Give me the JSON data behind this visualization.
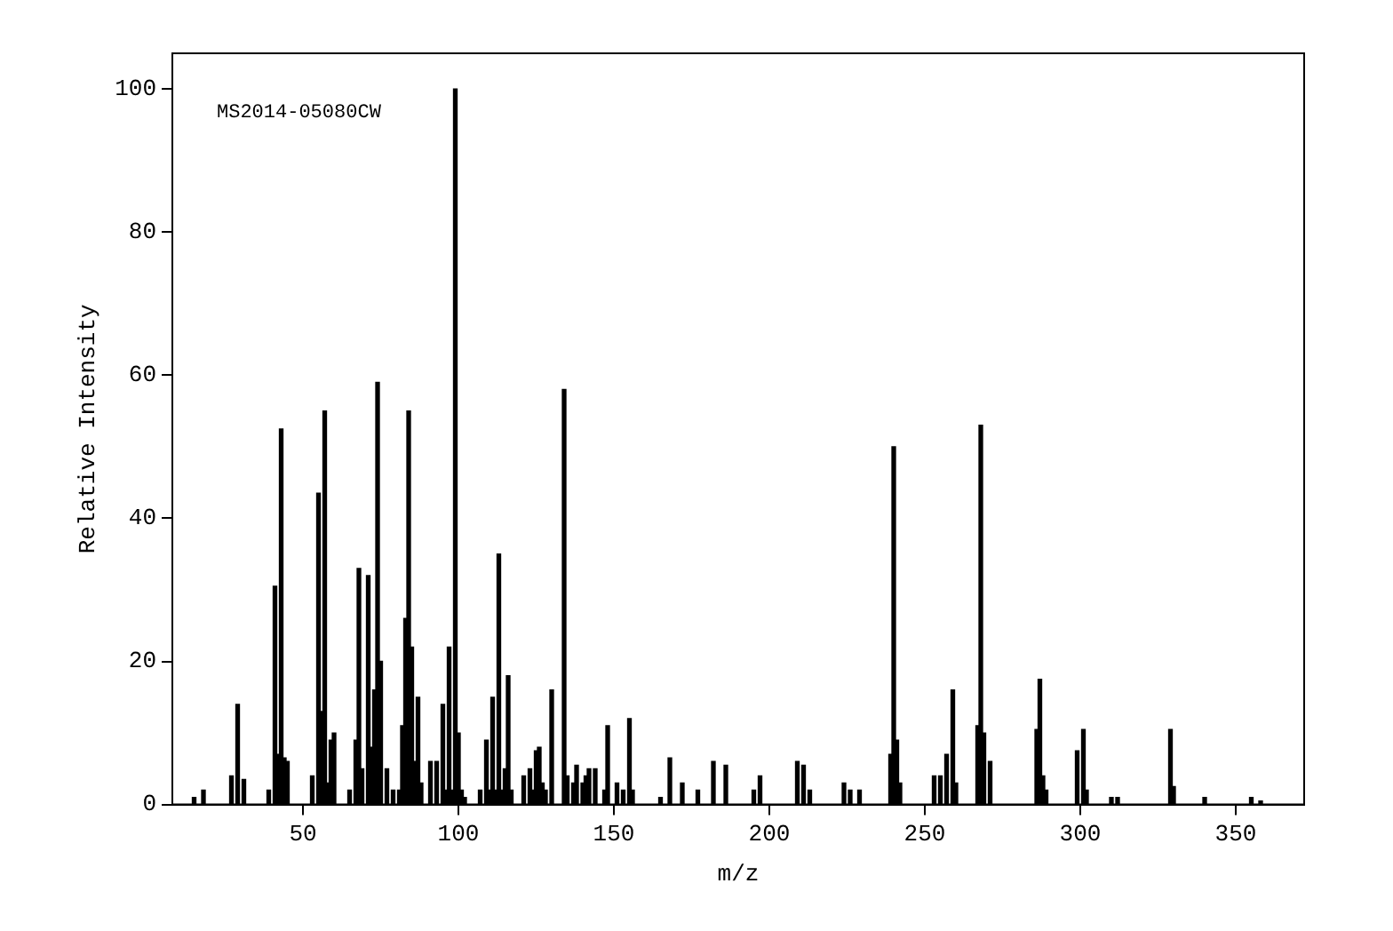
{
  "chart_data": {
    "type": "bar",
    "xlabel": "m/z",
    "ylabel": "Relative Intensity",
    "annotations": [
      "MS2014-05080CW"
    ],
    "x": [
      15,
      18,
      27,
      29,
      31,
      39,
      41,
      42,
      43,
      44,
      45,
      53,
      55,
      56,
      57,
      58,
      59,
      60,
      65,
      67,
      68,
      69,
      71,
      72,
      73,
      74,
      75,
      77,
      79,
      81,
      82,
      83,
      84,
      85,
      86,
      87,
      88,
      91,
      93,
      95,
      96,
      97,
      98,
      99,
      100,
      101,
      102,
      107,
      109,
      110,
      111,
      112,
      113,
      114,
      115,
      116,
      117,
      121,
      123,
      124,
      125,
      126,
      127,
      128,
      130,
      134,
      135,
      137,
      138,
      140,
      141,
      142,
      144,
      147,
      148,
      151,
      153,
      155,
      156,
      165,
      168,
      172,
      177,
      182,
      186,
      195,
      197,
      209,
      211,
      213,
      224,
      226,
      229,
      239,
      240,
      241,
      242,
      253,
      255,
      257,
      259,
      260,
      267,
      268,
      269,
      271,
      286,
      287,
      288,
      289,
      299,
      301,
      302,
      310,
      312,
      329,
      330,
      340,
      355,
      358
    ],
    "values": [
      1,
      2,
      4,
      14,
      3.5,
      2,
      30.5,
      7,
      52.5,
      6.5,
      6,
      4,
      43.5,
      13,
      55,
      3,
      9,
      10,
      2,
      9,
      33,
      5,
      32,
      8,
      16,
      59,
      20,
      5,
      2,
      2,
      11,
      26,
      55,
      22,
      6,
      15,
      3,
      6,
      6,
      14,
      2,
      22,
      2,
      100,
      10,
      2,
      1,
      2,
      9,
      2,
      15,
      2,
      35,
      2,
      5,
      18,
      2,
      4,
      5,
      2,
      7.5,
      8,
      3,
      2,
      16,
      58,
      4,
      3,
      5.5,
      3,
      4,
      5,
      5,
      2,
      11,
      3,
      2,
      12,
      2,
      1,
      6.5,
      3,
      2,
      6,
      5.5,
      2,
      4,
      6,
      5.5,
      2,
      3,
      2,
      2,
      7,
      50,
      9,
      3,
      4,
      4,
      7,
      16,
      3,
      11,
      53,
      10,
      6,
      10.5,
      17.5,
      4,
      2,
      7.5,
      10.5,
      2,
      1,
      1,
      10.5,
      2.5,
      1,
      1,
      0.5
    ],
    "color": "#000000",
    "xlim": [
      8,
      372
    ],
    "xticks": [
      50,
      100,
      150,
      200,
      250,
      300,
      350
    ],
    "ylim": [
      0,
      105
    ],
    "yticks": [
      0,
      20,
      40,
      60,
      80,
      100
    ],
    "grid": false,
    "legend": false
  }
}
